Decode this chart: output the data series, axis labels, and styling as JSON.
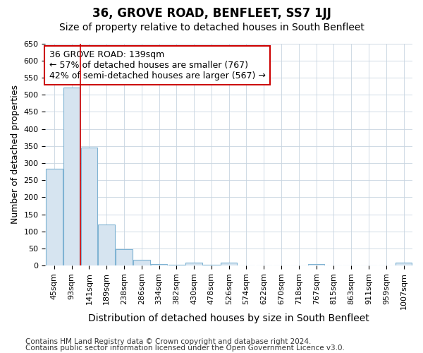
{
  "title": "36, GROVE ROAD, BENFLEET, SS7 1JJ",
  "subtitle": "Size of property relative to detached houses in South Benfleet",
  "xlabel": "Distribution of detached houses by size in South Benfleet",
  "ylabel": "Number of detached properties",
  "bin_labels": [
    "45sqm",
    "93sqm",
    "141sqm",
    "189sqm",
    "238sqm",
    "286sqm",
    "334sqm",
    "382sqm",
    "430sqm",
    "478sqm",
    "526sqm",
    "574sqm",
    "622sqm",
    "670sqm",
    "718sqm",
    "767sqm",
    "815sqm",
    "863sqm",
    "911sqm",
    "959sqm",
    "1007sqm"
  ],
  "bar_values": [
    283,
    520,
    345,
    120,
    48,
    18,
    5,
    3,
    8,
    3,
    8,
    0,
    0,
    0,
    0,
    5,
    0,
    0,
    0,
    0,
    8
  ],
  "bar_color": "#d6e4f0",
  "bar_edgecolor": "#7fb3d3",
  "bar_linewidth": 0.8,
  "vline_x_idx": 2,
  "vline_color": "#cc0000",
  "vline_linewidth": 1.2,
  "annotation_line1": "36 GROVE ROAD: 139sqm",
  "annotation_line2": "← 57% of detached houses are smaller (767)",
  "annotation_line3": "42% of semi-detached houses are larger (567) →",
  "annotation_box_edgecolor": "#cc0000",
  "annotation_box_facecolor": "white",
  "annotation_fontsize": 9,
  "ylim": [
    0,
    650
  ],
  "yticks": [
    0,
    50,
    100,
    150,
    200,
    250,
    300,
    350,
    400,
    450,
    500,
    550,
    600,
    650
  ],
  "footer_line1": "Contains HM Land Registry data © Crown copyright and database right 2024.",
  "footer_line2": "Contains public sector information licensed under the Open Government Licence v3.0.",
  "bg_color": "#ffffff",
  "plot_bg_color": "#ffffff",
  "grid_color": "#c8d4e0",
  "title_fontsize": 12,
  "subtitle_fontsize": 10,
  "xlabel_fontsize": 10,
  "ylabel_fontsize": 9,
  "tick_fontsize": 8,
  "footer_fontsize": 7.5
}
